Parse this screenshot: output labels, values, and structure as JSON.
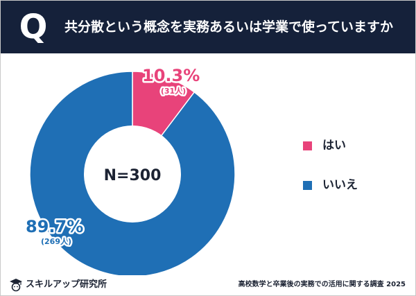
{
  "header": {
    "q_letter": "Q",
    "question": "共分散という概念を実務あるいは学業で使っていますか"
  },
  "chart_data": {
    "type": "pie",
    "center_label": "N=300",
    "slices": [
      {
        "name": "はい",
        "percent": 10.3,
        "percent_label": "10.3%",
        "count_label": "(31人)",
        "color": "#e8437a"
      },
      {
        "name": "いいえ",
        "percent": 89.7,
        "percent_label": "89.7%",
        "count_label": "(269人)",
        "color": "#1f6fb5"
      }
    ],
    "legend_position": "right"
  },
  "footer": {
    "logo_text": "スキルアップ研究所",
    "note": "高校数学と卒業後の実務での活用に関する調査 2025"
  },
  "colors": {
    "header_bg": "#15213a",
    "yes": "#e8437a",
    "no": "#1f6fb5"
  }
}
